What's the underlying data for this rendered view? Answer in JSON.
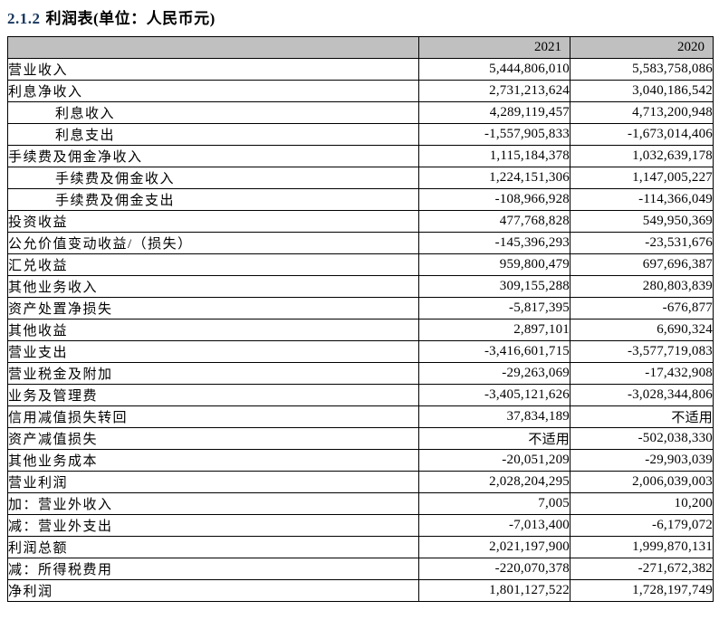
{
  "page": {
    "title_number": "2.1.2",
    "title_text": "利润表(单位：人民币元)"
  },
  "colors": {
    "header_bg": "#c0c0c0",
    "border": "#000000",
    "title_number": "#17365d",
    "text": "#000000"
  },
  "table": {
    "header": {
      "label_col": "",
      "year_1": "2021",
      "year_2": "2020"
    },
    "rows": [
      {
        "label": "营业收入",
        "indent": 0,
        "v2021": "5,444,806,010",
        "v2020": "5,583,758,086"
      },
      {
        "label": "利息净收入",
        "indent": 0,
        "v2021": "2,731,213,624",
        "v2020": "3,040,186,542"
      },
      {
        "label": "利息收入",
        "indent": 1,
        "v2021": "4,289,119,457",
        "v2020": "4,713,200,948"
      },
      {
        "label": "利息支出",
        "indent": 1,
        "v2021": "-1,557,905,833",
        "v2020": "-1,673,014,406"
      },
      {
        "label": "手续费及佣金净收入",
        "indent": 0,
        "v2021": "1,115,184,378",
        "v2020": "1,032,639,178"
      },
      {
        "label": "手续费及佣金收入",
        "indent": 1,
        "v2021": "1,224,151,306",
        "v2020": "1,147,005,227"
      },
      {
        "label": "手续费及佣金支出",
        "indent": 1,
        "v2021": "-108,966,928",
        "v2020": "-114,366,049"
      },
      {
        "label": "投资收益",
        "indent": 0,
        "v2021": "477,768,828",
        "v2020": "549,950,369"
      },
      {
        "label": "公允价值变动收益/（损失）",
        "indent": 0,
        "v2021": "-145,396,293",
        "v2020": "-23,531,676"
      },
      {
        "label": "汇兑收益",
        "indent": 0,
        "v2021": "959,800,479",
        "v2020": "697,696,387"
      },
      {
        "label": "其他业务收入",
        "indent": 0,
        "v2021": "309,155,288",
        "v2020": "280,803,839"
      },
      {
        "label": "资产处置净损失",
        "indent": 0,
        "v2021": "-5,817,395",
        "v2020": "-676,877"
      },
      {
        "label": "其他收益",
        "indent": 0,
        "v2021": "2,897,101",
        "v2020": "6,690,324"
      },
      {
        "label": "营业支出",
        "indent": 0,
        "v2021": "-3,416,601,715",
        "v2020": "-3,577,719,083"
      },
      {
        "label": "营业税金及附加",
        "indent": 0,
        "v2021": "-29,263,069",
        "v2020": "-17,432,908"
      },
      {
        "label": "业务及管理费",
        "indent": 0,
        "v2021": "-3,405,121,626",
        "v2020": "-3,028,344,806"
      },
      {
        "label": "信用减值损失转回",
        "indent": 0,
        "v2021": "37,834,189",
        "v2020": "不适用"
      },
      {
        "label": "资产减值损失",
        "indent": 0,
        "v2021": "不适用",
        "v2020": "-502,038,330"
      },
      {
        "label": "其他业务成本",
        "indent": 0,
        "v2021": "-20,051,209",
        "v2020": "-29,903,039"
      },
      {
        "label": "营业利润",
        "indent": 0,
        "v2021": "2,028,204,295",
        "v2020": "2,006,039,003"
      },
      {
        "label": "加：营业外收入",
        "indent": 0,
        "v2021": "7,005",
        "v2020": "10,200"
      },
      {
        "label": "减：营业外支出",
        "indent": 0,
        "v2021": "-7,013,400",
        "v2020": "-6,179,072"
      },
      {
        "label": "利润总额",
        "indent": 0,
        "v2021": "2,021,197,900",
        "v2020": "1,999,870,131"
      },
      {
        "label": "减：所得税费用",
        "indent": 0,
        "v2021": "-220,070,378",
        "v2020": "-271,672,382"
      },
      {
        "label": "净利润",
        "indent": 0,
        "v2021": "1,801,127,522",
        "v2020": "1,728,197,749"
      }
    ]
  }
}
